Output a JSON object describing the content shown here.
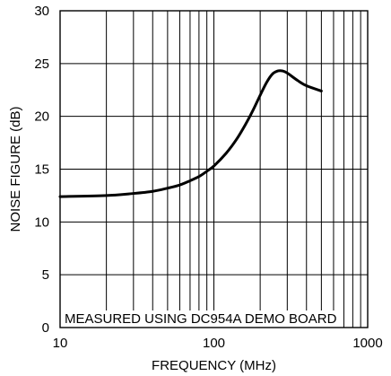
{
  "chart_data": {
    "type": "line",
    "title": "",
    "xlabel": "FREQUENCY (MHz)",
    "ylabel": "NOISE FIGURE (dB)",
    "x_scale": "log",
    "xlim": [
      10,
      1000
    ],
    "ylim": [
      0,
      30
    ],
    "x_ticks": [
      10,
      100,
      1000
    ],
    "x_tick_labels": [
      "10",
      "100",
      "1000"
    ],
    "y_ticks": [
      0,
      5,
      10,
      15,
      20,
      25,
      30
    ],
    "y_tick_labels": [
      "0",
      "5",
      "10",
      "15",
      "20",
      "25",
      "30"
    ],
    "grid": true,
    "annotation": "MEASURED USING DC954A DEMO BOARD",
    "series": [
      {
        "color": "#000000",
        "x": [
          10,
          20,
          30,
          40,
          50,
          60,
          70,
          80,
          90,
          100,
          120,
          140,
          160,
          180,
          200,
          220,
          240,
          260,
          280,
          300,
          350,
          400,
          500
        ],
        "y": [
          12.4,
          12.5,
          12.7,
          12.9,
          13.2,
          13.5,
          13.9,
          14.3,
          14.8,
          15.3,
          16.5,
          17.8,
          19.2,
          20.6,
          22.0,
          23.2,
          24.0,
          24.3,
          24.3,
          24.1,
          23.4,
          22.9,
          22.4
        ]
      }
    ],
    "line_color": "#000000",
    "grid_color": "#000000"
  }
}
